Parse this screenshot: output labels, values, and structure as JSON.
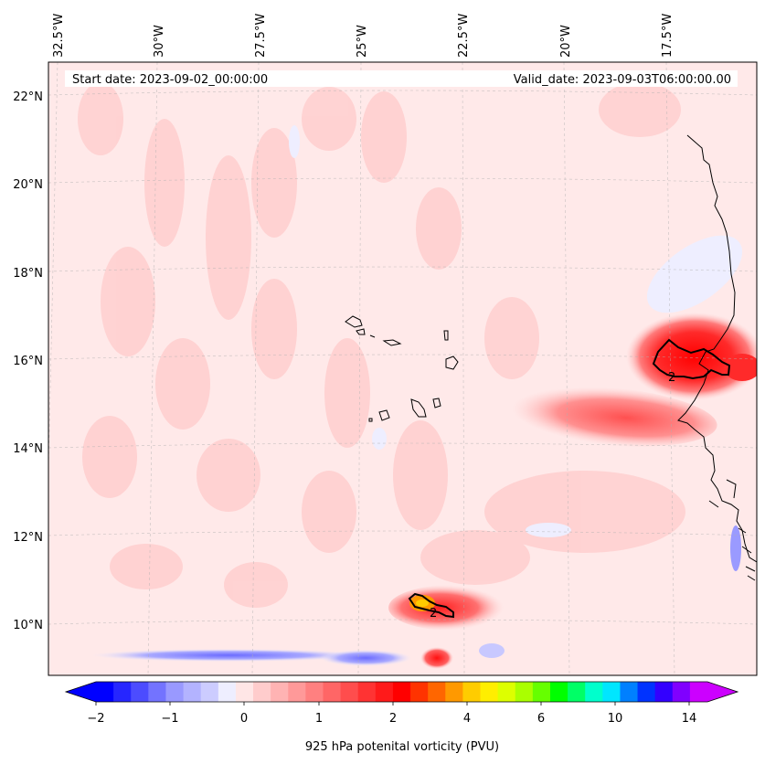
{
  "map": {
    "start_label": "Start date: 2023-09-02_00:00:00",
    "valid_label": "Valid_date: 2023-09-03T06:00:00.00",
    "lon_ticks": [
      "32.5°W",
      "30°W",
      "27.5°W",
      "25°W",
      "22.5°W",
      "20°W",
      "17.5°W"
    ],
    "lat_ticks": [
      "22°N",
      "20°N",
      "18°N",
      "16°N",
      "14°N",
      "12°N",
      "10°N"
    ],
    "contour_label_1": "2",
    "contour_label_2": "2",
    "background_color": "#ffe9e9"
  },
  "colorbar": {
    "title": "925 hPa potenital vorticity (PVU)",
    "tick_labels": [
      "−2",
      "−1",
      "0",
      "1",
      "2",
      "4",
      "6",
      "10",
      "14"
    ],
    "colors": [
      "#0000ff",
      "#2626ff",
      "#4c4cff",
      "#7373ff",
      "#9999ff",
      "#b3b3ff",
      "#ccccff",
      "#eeeeff",
      "#ffe6e6",
      "#ffcccc",
      "#ffb3b3",
      "#ff9999",
      "#ff8080",
      "#ff6666",
      "#ff4d4d",
      "#ff3333",
      "#ff1a1a",
      "#ff0000",
      "#ff3300",
      "#ff6600",
      "#ff9900",
      "#ffcc00",
      "#ffee00",
      "#ddff00",
      "#aaff00",
      "#66ff00",
      "#00ff00",
      "#00ff66",
      "#00ffcc",
      "#00e6ff",
      "#0080ff",
      "#0033ff",
      "#3300ff",
      "#8000ff",
      "#cc00ff"
    ]
  }
}
